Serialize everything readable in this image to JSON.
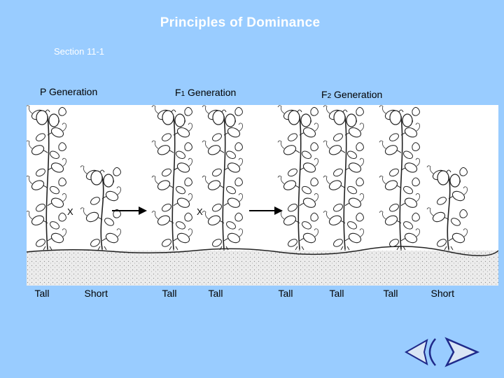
{
  "slide": {
    "title": "Principles of Dominance",
    "section": "Section 11-1"
  },
  "generations": {
    "p": "P Generation",
    "f1_letter": "F",
    "f1_sub": "1",
    "f1_rest": " Generation",
    "f2_letter": "F",
    "f2_sub": "2",
    "f2_rest": " Generation"
  },
  "cross_symbol": "X",
  "plants": [
    {
      "label": "Tall",
      "height": "tall"
    },
    {
      "label": "Short",
      "height": "short"
    },
    {
      "label": "Tall",
      "height": "tall"
    },
    {
      "label": "Tall",
      "height": "tall"
    },
    {
      "label": "Tall",
      "height": "tall"
    },
    {
      "label": "Tall",
      "height": "tall"
    },
    {
      "label": "Tall",
      "height": "tall"
    },
    {
      "label": "Short",
      "height": "short"
    }
  ],
  "colors": {
    "background": "#99ccff",
    "nav_fill": "#d9e6f5",
    "nav_stroke": "#1f2a8a"
  },
  "nav": {
    "back_icon": "back-arrow-icon",
    "forward_icon": "forward-arrow-icon"
  }
}
